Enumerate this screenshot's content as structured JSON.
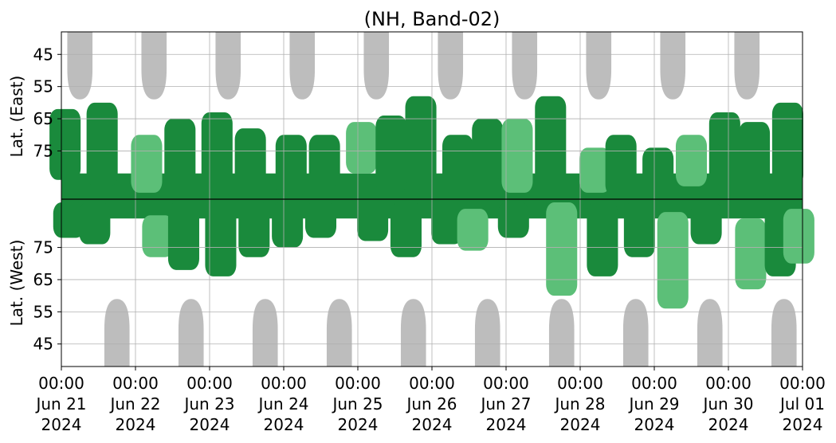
{
  "chart_data": {
    "type": "heatmap",
    "title": "(NH, Band-02)",
    "upper_panel": {
      "ylabel": "Lat. (East)",
      "y_ticks": [
        45,
        55,
        65,
        75
      ],
      "ylim": [
        90,
        38
      ]
    },
    "lower_panel": {
      "ylabel": "Lat. (West)",
      "y_ticks": [
        75,
        65,
        55,
        45
      ],
      "ylim": [
        90,
        38
      ]
    },
    "x_ticks": [
      {
        "time": "00:00",
        "date": "Jun 21",
        "year": "2024"
      },
      {
        "time": "00:00",
        "date": "Jun 22",
        "year": "2024"
      },
      {
        "time": "00:00",
        "date": "Jun 23",
        "year": "2024"
      },
      {
        "time": "00:00",
        "date": "Jun 24",
        "year": "2024"
      },
      {
        "time": "00:00",
        "date": "Jun 25",
        "year": "2024"
      },
      {
        "time": "00:00",
        "date": "Jun 26",
        "year": "2024"
      },
      {
        "time": "00:00",
        "date": "Jun 27",
        "year": "2024"
      },
      {
        "time": "00:00",
        "date": "Jun 28",
        "year": "2024"
      },
      {
        "time": "00:00",
        "date": "Jun 29",
        "year": "2024"
      },
      {
        "time": "00:00",
        "date": "Jun 30",
        "year": "2024"
      },
      {
        "time": "00:00",
        "date": "Jul 01",
        "year": "2024"
      }
    ],
    "xlim": [
      "2024-06-21 00:00",
      "2024-07-01 00:00"
    ],
    "grid": true,
    "colors": {
      "strong": "#1a8a3c",
      "weak": "#5cbf78",
      "daylight": "#bdbdbd",
      "grid": "#b0b0b0",
      "divider": "#000000"
    },
    "daylight_upper_day_offsets": [
      0.25,
      1.25,
      2.25,
      3.25,
      4.25,
      5.25,
      6.25,
      7.25,
      8.25,
      9.25
    ],
    "daylight_lower_day_offsets": [
      0.75,
      1.75,
      2.75,
      3.75,
      4.75,
      5.75,
      6.75,
      7.75,
      8.75,
      9.75
    ],
    "daylight_min_lat": 59,
    "activity_upper": [
      {
        "day": 0.05,
        "lat_min": 62,
        "lat_max": 84,
        "level": "strong"
      },
      {
        "day": 0.55,
        "lat_min": 60,
        "lat_max": 86,
        "level": "strong"
      },
      {
        "day": 1.15,
        "lat_min": 70,
        "lat_max": 88,
        "level": "weak"
      },
      {
        "day": 1.6,
        "lat_min": 65,
        "lat_max": 89,
        "level": "strong"
      },
      {
        "day": 2.1,
        "lat_min": 63,
        "lat_max": 89,
        "level": "strong"
      },
      {
        "day": 2.55,
        "lat_min": 68,
        "lat_max": 89,
        "level": "strong"
      },
      {
        "day": 3.1,
        "lat_min": 70,
        "lat_max": 89,
        "level": "strong"
      },
      {
        "day": 3.55,
        "lat_min": 70,
        "lat_max": 86,
        "level": "strong"
      },
      {
        "day": 4.05,
        "lat_min": 66,
        "lat_max": 82,
        "level": "weak"
      },
      {
        "day": 4.45,
        "lat_min": 64,
        "lat_max": 88,
        "level": "strong"
      },
      {
        "day": 4.85,
        "lat_min": 58,
        "lat_max": 86,
        "level": "strong"
      },
      {
        "day": 5.35,
        "lat_min": 70,
        "lat_max": 88,
        "level": "strong"
      },
      {
        "day": 5.75,
        "lat_min": 65,
        "lat_max": 84,
        "level": "strong"
      },
      {
        "day": 6.15,
        "lat_min": 65,
        "lat_max": 88,
        "level": "weak"
      },
      {
        "day": 6.6,
        "lat_min": 58,
        "lat_max": 89,
        "level": "strong"
      },
      {
        "day": 7.2,
        "lat_min": 74,
        "lat_max": 88,
        "level": "weak"
      },
      {
        "day": 7.55,
        "lat_min": 70,
        "lat_max": 89,
        "level": "strong"
      },
      {
        "day": 8.05,
        "lat_min": 74,
        "lat_max": 89,
        "level": "strong"
      },
      {
        "day": 8.5,
        "lat_min": 70,
        "lat_max": 86,
        "level": "weak"
      },
      {
        "day": 8.95,
        "lat_min": 63,
        "lat_max": 89,
        "level": "strong"
      },
      {
        "day": 9.35,
        "lat_min": 66,
        "lat_max": 89,
        "level": "strong"
      },
      {
        "day": 9.8,
        "lat_min": 60,
        "lat_max": 86,
        "level": "strong"
      }
    ],
    "activity_lower": [
      {
        "day": 0.1,
        "lat_min": 78,
        "lat_max": 89,
        "level": "strong"
      },
      {
        "day": 0.45,
        "lat_min": 76,
        "lat_max": 89,
        "level": "strong"
      },
      {
        "day": 1.3,
        "lat_min": 72,
        "lat_max": 85,
        "level": "weak"
      },
      {
        "day": 1.65,
        "lat_min": 68,
        "lat_max": 89,
        "level": "strong"
      },
      {
        "day": 2.15,
        "lat_min": 66,
        "lat_max": 89,
        "level": "strong"
      },
      {
        "day": 2.6,
        "lat_min": 72,
        "lat_max": 89,
        "level": "strong"
      },
      {
        "day": 3.05,
        "lat_min": 75,
        "lat_max": 89,
        "level": "strong"
      },
      {
        "day": 3.5,
        "lat_min": 78,
        "lat_max": 89,
        "level": "strong"
      },
      {
        "day": 4.2,
        "lat_min": 77,
        "lat_max": 89,
        "level": "strong"
      },
      {
        "day": 4.65,
        "lat_min": 72,
        "lat_max": 89,
        "level": "strong"
      },
      {
        "day": 5.2,
        "lat_min": 76,
        "lat_max": 89,
        "level": "strong"
      },
      {
        "day": 5.55,
        "lat_min": 74,
        "lat_max": 87,
        "level": "weak"
      },
      {
        "day": 6.1,
        "lat_min": 78,
        "lat_max": 89,
        "level": "strong"
      },
      {
        "day": 6.75,
        "lat_min": 60,
        "lat_max": 89,
        "level": "weak"
      },
      {
        "day": 7.3,
        "lat_min": 66,
        "lat_max": 89,
        "level": "strong"
      },
      {
        "day": 7.8,
        "lat_min": 72,
        "lat_max": 89,
        "level": "strong"
      },
      {
        "day": 8.25,
        "lat_min": 56,
        "lat_max": 86,
        "level": "weak"
      },
      {
        "day": 8.7,
        "lat_min": 76,
        "lat_max": 89,
        "level": "strong"
      },
      {
        "day": 9.3,
        "lat_min": 62,
        "lat_max": 84,
        "level": "weak"
      },
      {
        "day": 9.7,
        "lat_min": 66,
        "lat_max": 89,
        "level": "strong"
      },
      {
        "day": 9.95,
        "lat_min": 70,
        "lat_max": 87,
        "level": "weak"
      }
    ]
  }
}
